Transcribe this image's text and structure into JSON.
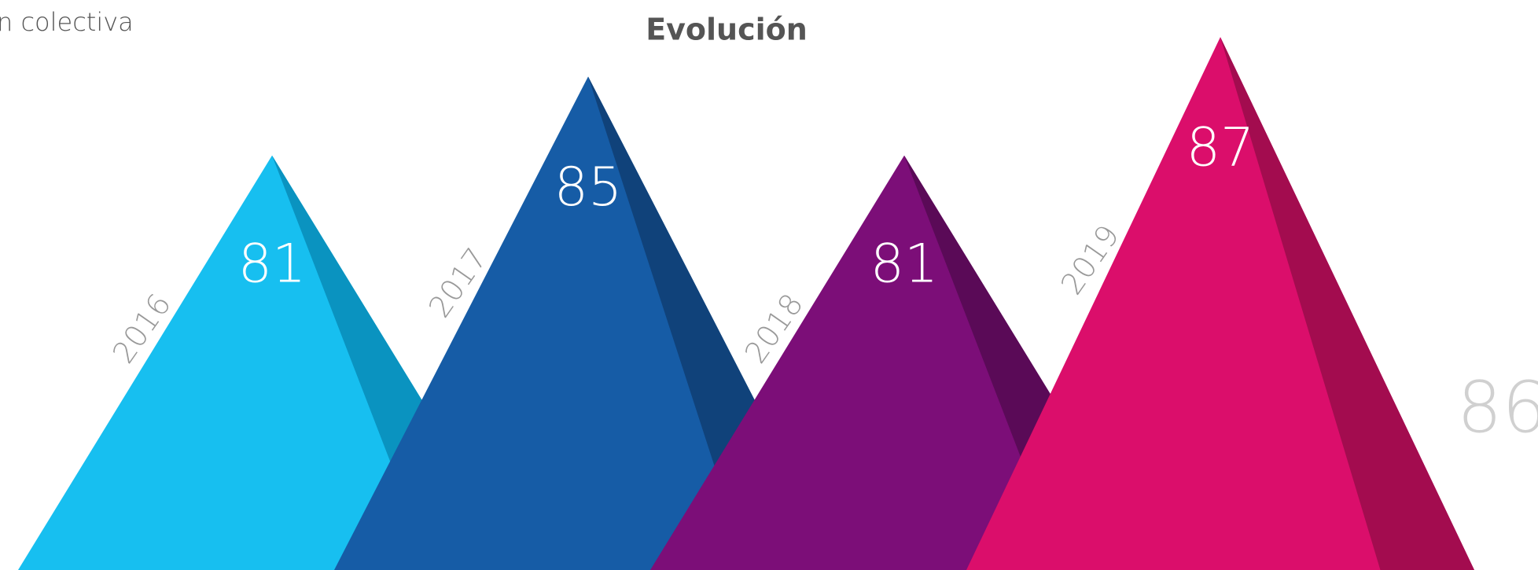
{
  "chart_data": {
    "type": "pyramid",
    "title": "Evolución",
    "categories": [
      "2016",
      "2017",
      "2018",
      "2019"
    ],
    "values": [
      81,
      85,
      81,
      87
    ],
    "colors": [
      "#17bff0",
      "#165ca6",
      "#7c0e78",
      "#db0e6b"
    ],
    "shade_colors": [
      "#0a93c0",
      "#10427a",
      "#5a0a57",
      "#a30c4f"
    ],
    "ylim": [
      60,
      88
    ],
    "annotations": [
      "n colectiva",
      "86"
    ]
  }
}
